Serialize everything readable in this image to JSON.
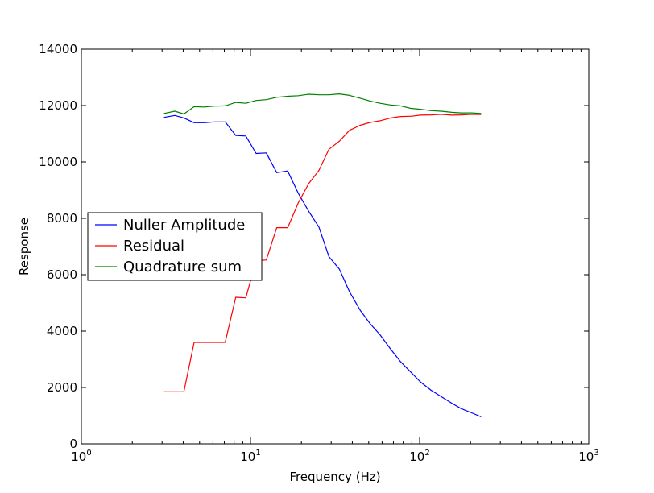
{
  "chart_data": {
    "type": "line",
    "xlabel": "Frequency (Hz)",
    "ylabel": "Response",
    "xscale": "log",
    "xlim": [
      1,
      1000
    ],
    "ylim": [
      0,
      14000
    ],
    "x_ticks": [
      {
        "value": 1,
        "base": "10",
        "exp": "0"
      },
      {
        "value": 10,
        "base": "10",
        "exp": "1"
      },
      {
        "value": 100,
        "base": "10",
        "exp": "2"
      },
      {
        "value": 1000,
        "base": "10",
        "exp": "3"
      }
    ],
    "y_ticks": [
      {
        "value": 0,
        "label": "0"
      },
      {
        "value": 2000,
        "label": "2000"
      },
      {
        "value": 4000,
        "label": "4000"
      },
      {
        "value": 6000,
        "label": "6000"
      },
      {
        "value": 8000,
        "label": "8000"
      },
      {
        "value": 10000,
        "label": "10000"
      },
      {
        "value": 12000,
        "label": "12000"
      },
      {
        "value": 14000,
        "label": "14000"
      }
    ],
    "grid": false,
    "legend_position": "center-left",
    "series": [
      {
        "name": "Nuller Amplitude",
        "color": "#0000ff",
        "points": [
          [
            3.08,
            11580
          ],
          [
            3.57,
            11650
          ],
          [
            4.04,
            11560
          ],
          [
            4.64,
            11390
          ],
          [
            5.34,
            11390
          ],
          [
            6.14,
            11420
          ],
          [
            7.09,
            11420
          ],
          [
            8.18,
            10940
          ],
          [
            9.38,
            10920
          ],
          [
            10.8,
            10300
          ],
          [
            12.4,
            10320
          ],
          [
            14.3,
            9620
          ],
          [
            16.6,
            9680
          ],
          [
            19.2,
            8880
          ],
          [
            22.1,
            8250
          ],
          [
            25.4,
            7690
          ],
          [
            29.1,
            6640
          ],
          [
            33.5,
            6200
          ],
          [
            38.5,
            5400
          ],
          [
            44.5,
            4740
          ],
          [
            51.0,
            4260
          ],
          [
            58.4,
            3870
          ],
          [
            67.4,
            3360
          ],
          [
            77.2,
            2910
          ],
          [
            88.8,
            2540
          ],
          [
            101,
            2200
          ],
          [
            117,
            1900
          ],
          [
            134,
            1680
          ],
          [
            155,
            1440
          ],
          [
            176,
            1250
          ],
          [
            203,
            1100
          ],
          [
            231,
            960
          ]
        ]
      },
      {
        "name": "Residual",
        "color": "#ff0000",
        "points": [
          [
            3.08,
            1850
          ],
          [
            3.57,
            1850
          ],
          [
            4.04,
            1850
          ],
          [
            4.64,
            3600
          ],
          [
            5.34,
            3600
          ],
          [
            6.14,
            3600
          ],
          [
            7.09,
            3600
          ],
          [
            8.18,
            5200
          ],
          [
            9.38,
            5180
          ],
          [
            10.8,
            6500
          ],
          [
            12.4,
            6520
          ],
          [
            14.3,
            7670
          ],
          [
            16.6,
            7670
          ],
          [
            19.2,
            8560
          ],
          [
            22.1,
            9230
          ],
          [
            25.4,
            9700
          ],
          [
            29.1,
            10450
          ],
          [
            33.5,
            10730
          ],
          [
            38.5,
            11120
          ],
          [
            44.5,
            11300
          ],
          [
            51.0,
            11400
          ],
          [
            58.4,
            11460
          ],
          [
            67.4,
            11560
          ],
          [
            77.2,
            11610
          ],
          [
            88.8,
            11620
          ],
          [
            101,
            11660
          ],
          [
            117,
            11670
          ],
          [
            134,
            11690
          ],
          [
            155,
            11660
          ],
          [
            176,
            11670
          ],
          [
            203,
            11690
          ],
          [
            231,
            11680
          ]
        ]
      },
      {
        "name": "Quadrature sum",
        "color": "#008000",
        "points": [
          [
            3.08,
            11720
          ],
          [
            3.57,
            11800
          ],
          [
            4.04,
            11700
          ],
          [
            4.64,
            11960
          ],
          [
            5.34,
            11950
          ],
          [
            6.14,
            11980
          ],
          [
            7.09,
            11990
          ],
          [
            8.18,
            12110
          ],
          [
            9.38,
            12080
          ],
          [
            10.8,
            12180
          ],
          [
            12.4,
            12210
          ],
          [
            14.3,
            12290
          ],
          [
            16.6,
            12330
          ],
          [
            19.2,
            12350
          ],
          [
            22.1,
            12400
          ],
          [
            25.4,
            12380
          ],
          [
            29.1,
            12380
          ],
          [
            33.5,
            12410
          ],
          [
            38.5,
            12360
          ],
          [
            44.5,
            12260
          ],
          [
            51.0,
            12160
          ],
          [
            58.4,
            12080
          ],
          [
            67.4,
            12020
          ],
          [
            77.2,
            11990
          ],
          [
            88.8,
            11900
          ],
          [
            101,
            11870
          ],
          [
            117,
            11820
          ],
          [
            134,
            11800
          ],
          [
            155,
            11760
          ],
          [
            176,
            11740
          ],
          [
            203,
            11740
          ],
          [
            231,
            11720
          ]
        ]
      }
    ]
  }
}
